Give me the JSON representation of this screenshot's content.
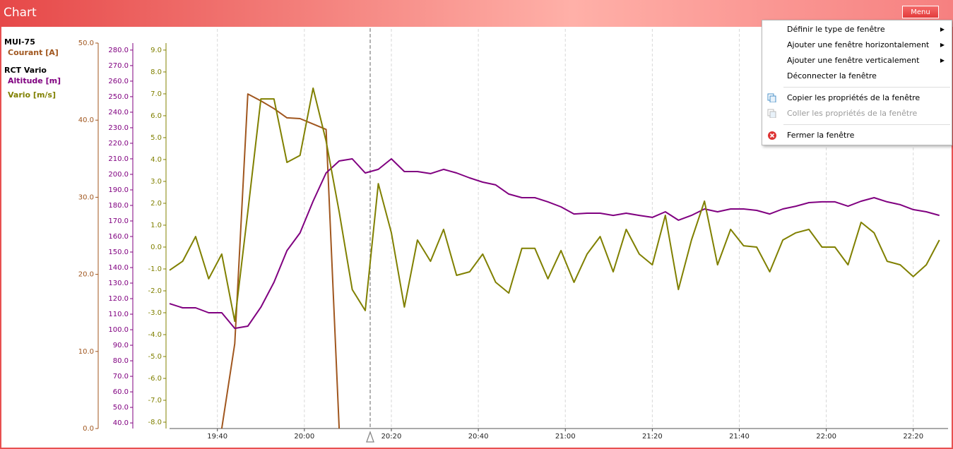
{
  "window": {
    "title": "Chart",
    "menu_button": "Menu"
  },
  "context_menu": {
    "sections": [
      [
        {
          "label": "Définir le type de fenêtre",
          "submenu": true,
          "enabled": true
        },
        {
          "label": "Ajouter une fenêtre horizontalement",
          "submenu": true,
          "enabled": true
        },
        {
          "label": "Ajouter une fenêtre verticalement",
          "submenu": true,
          "enabled": true
        },
        {
          "label": "Déconnecter la fenêtre",
          "submenu": false,
          "enabled": true
        }
      ],
      [
        {
          "label": "Copier les propriétés de la fenêtre",
          "submenu": false,
          "enabled": true
        },
        {
          "label": "Coller les propriétés de la fenêtre",
          "submenu": false,
          "enabled": false
        }
      ],
      [
        {
          "label": "Fermer la fenêtre",
          "submenu": false,
          "enabled": true
        }
      ]
    ]
  },
  "chart_data": {
    "type": "line",
    "x": [
      "19:29",
      "19:32",
      "19:35",
      "19:38",
      "19:41",
      "19:44",
      "19:47",
      "19:50",
      "19:53",
      "19:56",
      "19:59",
      "20:02",
      "20:05",
      "20:08",
      "20:11",
      "20:14",
      "20:17",
      "20:20",
      "20:23",
      "20:26",
      "20:29",
      "20:32",
      "20:35",
      "20:38",
      "20:41",
      "20:44",
      "20:47",
      "20:50",
      "20:53",
      "20:56",
      "20:59",
      "21:02",
      "21:05",
      "21:08",
      "21:11",
      "21:14",
      "21:17",
      "21:20",
      "21:23",
      "21:26",
      "21:29",
      "21:32",
      "21:35",
      "21:38",
      "21:41",
      "21:44",
      "21:47",
      "21:50",
      "21:53",
      "21:56",
      "21:59",
      "22:02",
      "22:05",
      "22:08",
      "22:11",
      "22:14",
      "22:17",
      "22:20",
      "22:23",
      "22:26"
    ],
    "xlim": [
      "19:29",
      "22:28"
    ],
    "xticks": [
      "19:40",
      "20:00",
      "20:20",
      "20:40",
      "21:00",
      "21:20",
      "21:40",
      "22:00",
      "22:20"
    ],
    "grid": true,
    "series": [
      {
        "name": "Courant [A]",
        "device": "MUI-75",
        "color": "#a0561e",
        "axis": "y",
        "values": [
          null,
          null,
          null,
          null,
          0,
          11,
          43.4,
          42.5,
          41.5,
          40.3,
          40.2,
          39.5,
          38.8,
          0,
          null,
          null,
          null,
          null,
          null,
          null,
          null,
          null,
          null,
          null,
          null,
          null,
          null,
          null,
          null,
          null,
          null,
          null,
          null,
          null,
          null,
          null,
          null,
          null,
          null,
          null,
          null,
          null,
          null,
          null,
          null,
          null,
          null,
          null,
          null,
          null,
          null,
          null,
          null,
          null,
          null,
          null,
          null,
          null,
          null,
          null
        ]
      },
      {
        "name": "Altitude [m]",
        "device": "RCT Vario",
        "color": "#800080",
        "axis": "y2",
        "values": [
          116.8,
          114.1,
          114.1,
          110.9,
          110.9,
          100.9,
          102.3,
          114.5,
          130.5,
          150.9,
          162.3,
          182.7,
          200.9,
          208.6,
          210,
          200.9,
          203.2,
          210,
          201.8,
          201.8,
          200.5,
          203.2,
          200.9,
          197.7,
          195,
          193.2,
          187.3,
          185,
          185,
          182.3,
          179.1,
          174.5,
          175,
          175,
          173.6,
          175,
          173.6,
          172.3,
          175.9,
          170.5,
          173.6,
          177.7,
          175.9,
          177.7,
          177.7,
          176.8,
          174.5,
          177.7,
          179.5,
          181.8,
          182.3,
          182.3,
          179.5,
          182.7,
          185,
          182.3,
          180.5,
          177.3,
          175.9,
          173.6
        ]
      },
      {
        "name": "Vario [m/s]",
        "device": "RCT Vario",
        "color": "#808000",
        "axis": "y3",
        "values": [
          -1.06,
          -0.65,
          0.48,
          -1.45,
          -0.32,
          -3.39,
          1.61,
          6.77,
          6.77,
          3.87,
          4.19,
          7.26,
          4.84,
          1.61,
          -1.94,
          -2.9,
          2.9,
          0.65,
          -2.74,
          0.32,
          -0.65,
          0.81,
          -1.29,
          -1.13,
          -0.32,
          -1.61,
          -2.1,
          -0.06,
          -0.06,
          -1.45,
          -0.16,
          -1.61,
          -0.32,
          0.48,
          -1.13,
          0.81,
          -0.32,
          -0.81,
          1.45,
          -1.94,
          0.32,
          2.1,
          -0.81,
          0.81,
          0.06,
          0,
          -1.13,
          0.32,
          0.65,
          0.81,
          0,
          0,
          -0.81,
          1.13,
          0.65,
          -0.65,
          -0.81,
          -1.35,
          -0.81,
          0.32
        ]
      }
    ],
    "ylim": [
      0,
      50
    ],
    "yticks": [
      {
        "value": 0,
        "label": "0.0"
      },
      {
        "value": 10,
        "label": "10.0"
      },
      {
        "value": 20,
        "label": "20.0"
      },
      {
        "value": 30,
        "label": "30.0"
      },
      {
        "value": 40,
        "label": "40.0"
      },
      {
        "value": 50,
        "label": "50.0"
      }
    ],
    "y2lim": [
      36.4,
      284.5
    ],
    "y2ticks": [
      {
        "value": 40,
        "label": "40.0"
      },
      {
        "value": 50,
        "label": "50.0"
      },
      {
        "value": 60,
        "label": "60.0"
      },
      {
        "value": 70,
        "label": "70.0"
      },
      {
        "value": 80,
        "label": "80.0"
      },
      {
        "value": 90,
        "label": "90.0"
      },
      {
        "value": 100,
        "label": "100.0"
      },
      {
        "value": 110,
        "label": "110.0"
      },
      {
        "value": 120,
        "label": "120.0"
      },
      {
        "value": 130,
        "label": "130.0"
      },
      {
        "value": 140,
        "label": "140.0"
      },
      {
        "value": 150,
        "label": "150.0"
      },
      {
        "value": 160,
        "label": "160.0"
      },
      {
        "value": 170,
        "label": "170.0"
      },
      {
        "value": 180,
        "label": "180.0"
      },
      {
        "value": 190,
        "label": "190.0"
      },
      {
        "value": 200,
        "label": "200.0"
      },
      {
        "value": 210,
        "label": "210.0"
      },
      {
        "value": 220,
        "label": "220.0"
      },
      {
        "value": 230,
        "label": "230.0"
      },
      {
        "value": 240,
        "label": "240.0"
      },
      {
        "value": 250,
        "label": "250.0"
      },
      {
        "value": 260,
        "label": "260.0"
      },
      {
        "value": 270,
        "label": "270.0"
      },
      {
        "value": 280,
        "label": "280.0"
      }
    ],
    "y3lim": [
      -8.29,
      9.32
    ],
    "y3ticks": [
      {
        "value": -8,
        "label": "-8.0"
      },
      {
        "value": -7,
        "label": "-7.0"
      },
      {
        "value": -6,
        "label": "-6.0"
      },
      {
        "value": -5,
        "label": "-5.0"
      },
      {
        "value": -4,
        "label": "-4.0"
      },
      {
        "value": -3,
        "label": "-3.0"
      },
      {
        "value": -2,
        "label": "-2.0"
      },
      {
        "value": -1,
        "label": "-1.0"
      },
      {
        "value": 0,
        "label": "0.0"
      },
      {
        "value": 1,
        "label": "1.0"
      },
      {
        "value": 2,
        "label": "2.0"
      },
      {
        "value": 3,
        "label": "3.0"
      },
      {
        "value": 4,
        "label": "4.0"
      },
      {
        "value": 5,
        "label": "5.0"
      },
      {
        "value": 6,
        "label": "6.0"
      },
      {
        "value": 7,
        "label": "7.0"
      },
      {
        "value": 8,
        "label": "8.0"
      },
      {
        "value": 9,
        "label": "9.0"
      }
    ]
  }
}
